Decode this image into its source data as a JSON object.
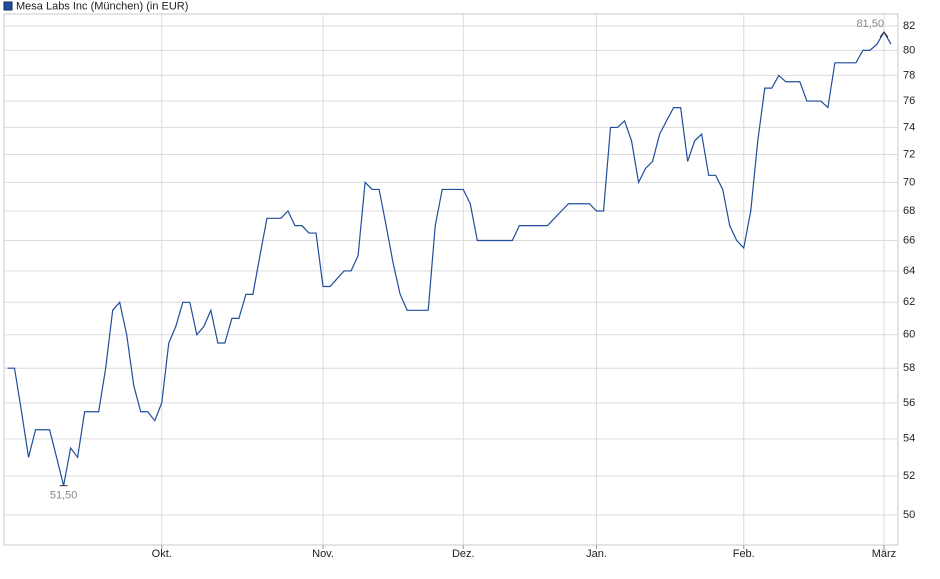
{
  "chart_data": {
    "type": "line",
    "series": [
      {
        "name": "Mesa Labs Inc (München) (in EUR)",
        "color": "#1f4e9a",
        "values": [
          58,
          58,
          55.5,
          53,
          54.5,
          54.5,
          54.5,
          53,
          51.5,
          53.5,
          53,
          55.5,
          55.5,
          55.5,
          58,
          61.5,
          62,
          60,
          57,
          55.5,
          55.5,
          55,
          56,
          59.5,
          60.5,
          62,
          62,
          60,
          60.5,
          61.5,
          59.5,
          59.5,
          61,
          61,
          62.5,
          62.5,
          65,
          67.5,
          67.5,
          67.5,
          68,
          67,
          67,
          66.5,
          66.5,
          63,
          63,
          63.5,
          64,
          64,
          65,
          70,
          69.5,
          69.5,
          67,
          64.5,
          62.5,
          61.5,
          61.5,
          61.5,
          61.5,
          67,
          69.5,
          69.5,
          69.5,
          69.5,
          68.5,
          66,
          66,
          66,
          66,
          66,
          66,
          67,
          67,
          67,
          67,
          67,
          67.5,
          68,
          68.5,
          68.5,
          68.5,
          68.5,
          68,
          68,
          74,
          74,
          74.5,
          73,
          70,
          71,
          71.5,
          73.5,
          74.5,
          75.5,
          75.5,
          71.5,
          73,
          73.5,
          70.5,
          70.5,
          69.5,
          67,
          66,
          65.5,
          68,
          73,
          77,
          77,
          78,
          77.5,
          77.5,
          77.5,
          76,
          76,
          76,
          75.5,
          79,
          79,
          79,
          79,
          80,
          80,
          80.5,
          81.5,
          80.5
        ]
      }
    ],
    "xlim": [
      -0.5,
      127
    ],
    "xticks": [
      {
        "value": 22,
        "label": "Okt."
      },
      {
        "value": 45,
        "label": "Nov."
      },
      {
        "value": 65,
        "label": "Dez."
      },
      {
        "value": 84,
        "label": "Jan."
      },
      {
        "value": 105,
        "label": "Feb."
      },
      {
        "value": 125,
        "label": "März"
      }
    ],
    "ylim": [
      48.5,
      83
    ],
    "yticks": [
      50,
      52,
      54,
      56,
      58,
      60,
      62,
      64,
      66,
      68,
      70,
      72,
      74,
      76,
      78,
      80,
      82
    ],
    "log_scale": true,
    "grid": true,
    "annotations": [
      {
        "x": 125,
        "value": 81.5,
        "label": "81,50",
        "side": "top"
      },
      {
        "x": 8,
        "value": 51.5,
        "label": "51,50",
        "side": "bottom"
      }
    ]
  }
}
